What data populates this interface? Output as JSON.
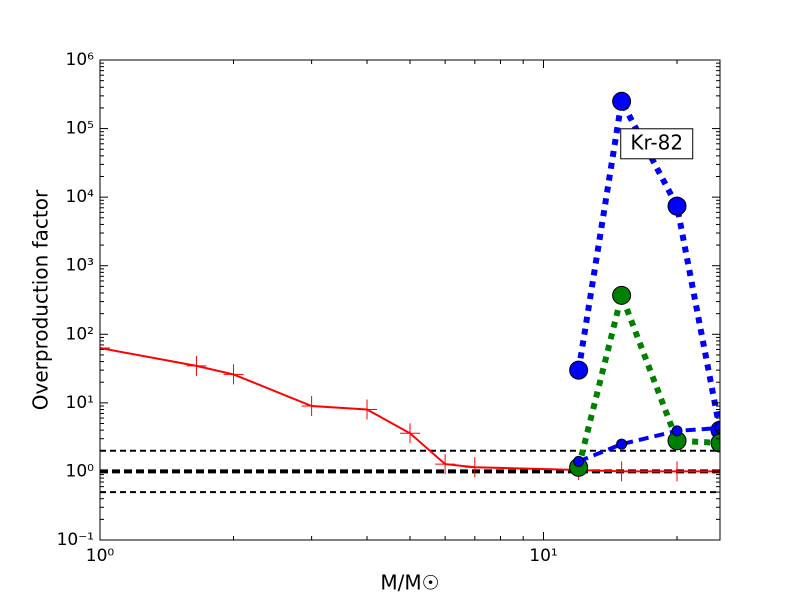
{
  "chart_data": {
    "type": "line",
    "xlabel": "M/M☉",
    "ylabel": "Overproduction factor",
    "xscale": "log",
    "yscale": "log",
    "xlim": [
      1,
      25
    ],
    "ylim": [
      0.1,
      1000000
    ],
    "xticks": [
      {
        "value": 1,
        "label": "10⁰"
      },
      {
        "value": 10,
        "label": "10¹"
      }
    ],
    "yticks": [
      {
        "value": 0.1,
        "label": "10⁻¹"
      },
      {
        "value": 1,
        "label": "10⁰"
      },
      {
        "value": 10,
        "label": "10¹"
      },
      {
        "value": 100,
        "label": "10²"
      },
      {
        "value": 1000,
        "label": "10³"
      },
      {
        "value": 10000,
        "label": "10⁴"
      },
      {
        "value": 100000,
        "label": "10⁵"
      },
      {
        "value": 1000000,
        "label": "10⁶"
      }
    ],
    "series": [
      {
        "color": "#ff0000",
        "marker": "plus",
        "linestyle": "solid",
        "x": [
          1,
          1.65,
          2,
          3,
          4,
          5,
          6,
          7,
          12,
          15,
          20,
          25
        ],
        "values": [
          63,
          34.6,
          26,
          9,
          8,
          3.6,
          1.28,
          1.15,
          1.05,
          1.0,
          1.0,
          1.0
        ]
      },
      {
        "color": "#0000ff",
        "marker": "circle",
        "linestyle": "dotted",
        "x": [
          12,
          15,
          20,
          25
        ],
        "values": [
          30,
          250000,
          7400,
          4
        ]
      },
      {
        "color": "#008000",
        "marker": "circle",
        "linestyle": "dotted",
        "x": [
          12,
          15,
          20,
          25
        ],
        "values": [
          1.15,
          370,
          2.8,
          2.6
        ]
      },
      {
        "color": "#0000ff",
        "marker": "small-circle",
        "linestyle": "dashed",
        "x": [
          12,
          15,
          20,
          25
        ],
        "values": [
          1.4,
          2.5,
          3.9,
          4.3
        ]
      }
    ],
    "hlines": [
      {
        "y": 2,
        "width": 2
      },
      {
        "y": 1,
        "width": 4
      },
      {
        "y": 0.5,
        "width": 2
      }
    ],
    "annotation": {
      "text": "Kr-82",
      "x": 18,
      "y": 60000
    }
  }
}
